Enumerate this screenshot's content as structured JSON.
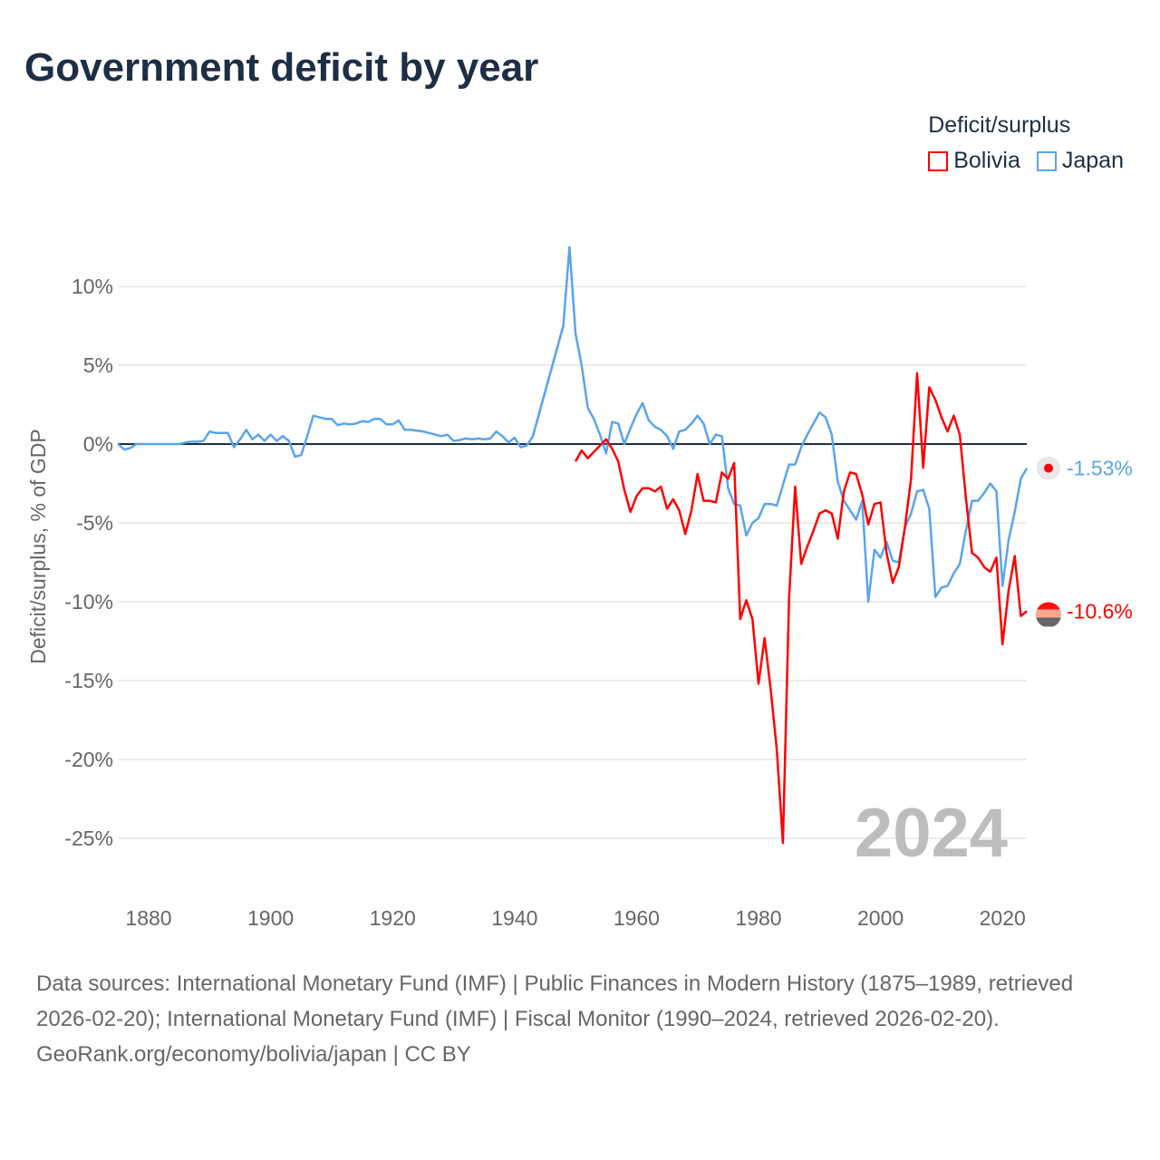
{
  "title": "Government deficit by year",
  "legend": {
    "title": "Deficit/surplus",
    "items": [
      {
        "name": "Bolivia",
        "color": "#ff0000"
      },
      {
        "name": "Japan",
        "color": "#5aa5ec"
      }
    ]
  },
  "watermark_year": "2024",
  "footer": {
    "sources": "Data sources: International Monetary Fund (IMF) | Public Finances in Modern History (1875–1989, retrieved 2026-02-20); International Monetary Fund (IMF) | Fiscal Monitor (1990–2024, retrieved 2026-02-20).",
    "credit": "GeoRank.org/economy/bolivia/japan | CC BY"
  },
  "chart_data": {
    "type": "line",
    "title": "Government deficit by year",
    "xlabel": "",
    "ylabel": "Deficit/surplus, % of GDP",
    "xlim": [
      1875,
      2024
    ],
    "ylim": [
      -27,
      13
    ],
    "x_ticks": [
      1880,
      1900,
      1920,
      1940,
      1960,
      1980,
      2000,
      2020
    ],
    "x_tick_labels": [
      "1880",
      "1900",
      "1920",
      "1940",
      "1960",
      "1980",
      "2000",
      "2020"
    ],
    "y_ticks": [
      10,
      5,
      0,
      -5,
      -10,
      -15,
      -20,
      -25
    ],
    "y_tick_labels": [
      "10%",
      "5%",
      "0%",
      "-5%",
      "-10%",
      "-15%",
      "-20%",
      "-25%"
    ],
    "grid": true,
    "legend_position": "top-right",
    "end_labels": {
      "Bolivia": "-10.6%",
      "Japan": "-1.53%"
    },
    "series": [
      {
        "name": "Japan",
        "color": "#5aa5ec",
        "start_year": 1875,
        "values": [
          0,
          -0.35,
          -0.25,
          0,
          0,
          0,
          0,
          0,
          0,
          0,
          0,
          0.1,
          0.15,
          0.15,
          0.2,
          0.8,
          0.7,
          0.7,
          0.7,
          -0.2,
          0.3,
          0.9,
          0.3,
          0.6,
          0.2,
          0.6,
          0.2,
          0.5,
          0.2,
          -0.8,
          -0.7,
          0.5,
          1.8,
          1.7,
          1.6,
          1.6,
          1.2,
          1.3,
          1.25,
          1.3,
          1.45,
          1.4,
          1.6,
          1.6,
          1.25,
          1.25,
          1.5,
          0.9,
          0.9,
          0.85,
          0.8,
          0.7,
          0.6,
          0.5,
          0.6,
          0.2,
          0.25,
          0.35,
          0.3,
          0.35,
          0.3,
          0.35,
          0.8,
          0.5,
          0.1,
          0.4,
          -0.2,
          -0.1,
          0.5,
          null,
          null,
          null,
          null,
          7.5,
          12.5,
          7.0,
          5.0,
          2.3,
          1.6,
          0.6,
          -0.6,
          1.4,
          1.3,
          0.0,
          1.0,
          1.9,
          2.6,
          1.5,
          1.1,
          0.9,
          0.5,
          -0.3,
          0.8,
          0.9,
          1.3,
          1.8,
          1.3,
          0.0,
          0.6,
          0.5,
          -2.8,
          -3.8,
          -3.9,
          -5.8,
          -5.0,
          -4.7,
          -3.8,
          -3.8,
          -3.9,
          -2.6,
          -1.3,
          -1.3,
          -0.2,
          0.6,
          1.3,
          2.0,
          1.7,
          0.6,
          -2.4,
          -3.6,
          -4.2,
          -4.8,
          -3.6,
          -10.0,
          -6.7,
          -7.2,
          -6.2,
          -7.4,
          -7.5,
          -5.3,
          -4.4,
          -3.0,
          -2.9,
          -4.1,
          -9.7,
          -9.1,
          -9.0,
          -8.2,
          -7.6,
          -5.5,
          -3.6,
          -3.6,
          -3.1,
          -2.5,
          -3.0,
          -9.0,
          -6.1,
          -4.3,
          -2.2,
          -1.53
        ]
      },
      {
        "name": "Bolivia",
        "color": "#ff0000",
        "start_year": 1950,
        "values": [
          -1.1,
          -0.4,
          -0.9,
          -0.5,
          -0.1,
          0.3,
          -0.3,
          -1.1,
          -2.9,
          -4.3,
          -3.3,
          -2.8,
          -2.8,
          -3.0,
          -2.7,
          -4.1,
          -3.5,
          -4.2,
          -5.7,
          -4.2,
          -1.9,
          -3.6,
          -3.6,
          -3.7,
          -1.8,
          -2.2,
          -1.2,
          -11.1,
          -9.9,
          -11.1,
          -15.2,
          -12.3,
          -15.6,
          -19.4,
          -25.3,
          -9.8,
          -2.7,
          -7.6,
          -6.5,
          -5.5,
          -4.4,
          -4.2,
          -4.4,
          -6.0,
          -3.0,
          -1.8,
          -1.9,
          -3.2,
          -5.1,
          -3.8,
          -3.7,
          -6.9,
          -8.8,
          -7.8,
          -5.3,
          -2.2,
          4.5,
          -1.5,
          3.6,
          2.8,
          1.7,
          0.8,
          1.8,
          0.6,
          -3.4,
          -6.9,
          -7.2,
          -7.8,
          -8.1,
          -7.2,
          -12.7,
          -9.3,
          -7.1,
          -10.9,
          -10.6
        ]
      }
    ]
  }
}
